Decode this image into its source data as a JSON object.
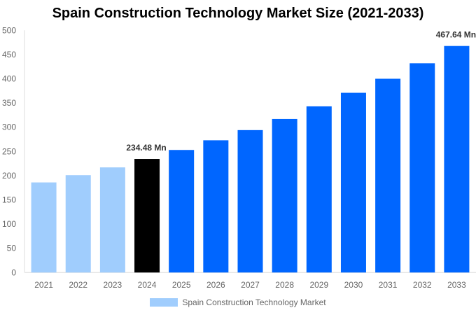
{
  "chart_data": {
    "type": "bar",
    "title": "Spain Construction Technology Market Size (2021-2033)",
    "categories": [
      "2021",
      "2022",
      "2023",
      "2024",
      "2025",
      "2026",
      "2027",
      "2028",
      "2029",
      "2030",
      "2031",
      "2032",
      "2033"
    ],
    "series": [
      {
        "name": "Spain Construction Technology Market",
        "values": [
          186,
          201,
          217,
          234.48,
          253,
          273,
          294,
          317,
          343,
          371,
          400,
          432,
          467.64
        ]
      }
    ],
    "ylim": [
      0,
      500
    ],
    "yticks": [
      0,
      50,
      100,
      150,
      200,
      250,
      300,
      350,
      400,
      450,
      500
    ],
    "data_labels": {
      "3": "234.48 Mn",
      "12": "467.64 Mn"
    },
    "bar_colors": {
      "historical": "#a0cdfd",
      "base_year": "#000000",
      "forecast": "#0066ff"
    },
    "grid": false,
    "legend_position": "bottom"
  }
}
